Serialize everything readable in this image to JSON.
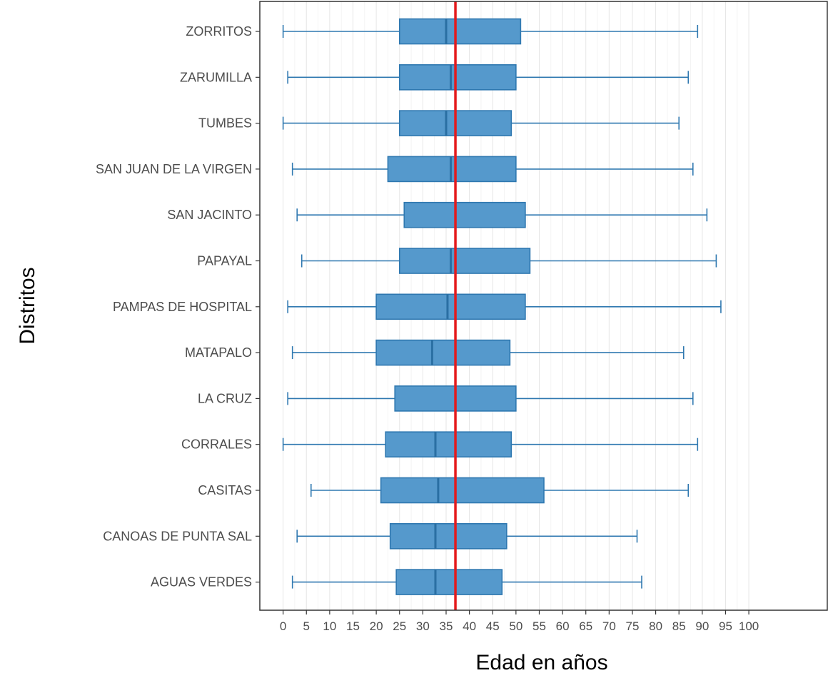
{
  "chart_data": {
    "type": "boxplot",
    "orientation": "horizontal",
    "xlabel": "Edad en años",
    "ylabel": "Distritos",
    "xlim": [
      -5,
      117
    ],
    "x_ticks": [
      0,
      5,
      10,
      15,
      20,
      25,
      30,
      35,
      40,
      45,
      50,
      55,
      60,
      65,
      70,
      75,
      80,
      85,
      90,
      95,
      100
    ],
    "grid": "vertical-major-and-minor",
    "reference_line": {
      "value": 37,
      "color": "#e41a1c"
    },
    "colors": {
      "box_fill": "#5599cc",
      "box_stroke": "#2f78b0",
      "median": "#2a6fa3",
      "frame": "#333333",
      "grid": "#e6e6e6"
    },
    "categories": [
      "ZORRITOS",
      "ZARUMILLA",
      "TUMBES",
      "SAN JUAN DE LA VIRGEN",
      "SAN JACINTO",
      "PAPAYAL",
      "PAMPAS DE HOSPITAL",
      "MATAPALO",
      "LA CRUZ",
      "CORRALES",
      "CASITAS",
      "CANOAS DE PUNTA SAL",
      "AGUAS VERDES"
    ],
    "boxes": [
      {
        "category": "ZORRITOS",
        "min": 0,
        "q1": 25,
        "median": 35,
        "q3": 51,
        "max": 89
      },
      {
        "category": "ZARUMILLA",
        "min": 1,
        "q1": 25,
        "median": 36,
        "q3": 50,
        "max": 87
      },
      {
        "category": "TUMBES",
        "min": 0,
        "q1": 25,
        "median": 35,
        "q3": 49,
        "max": 85
      },
      {
        "category": "SAN JUAN DE LA VIRGEN",
        "min": 2,
        "q1": 22.5,
        "median": 36,
        "q3": 50,
        "max": 88
      },
      {
        "category": "SAN JACINTO",
        "min": 3,
        "q1": 26,
        "median": 37,
        "q3": 52,
        "max": 91
      },
      {
        "category": "PAPAYAL",
        "min": 4,
        "q1": 25,
        "median": 36,
        "q3": 53,
        "max": 93
      },
      {
        "category": "PAMPAS DE HOSPITAL",
        "min": 1,
        "q1": 20,
        "median": 35.3,
        "q3": 52,
        "max": 94
      },
      {
        "category": "MATAPALO",
        "min": 2,
        "q1": 20,
        "median": 32,
        "q3": 48.7,
        "max": 86
      },
      {
        "category": "LA CRUZ",
        "min": 1,
        "q1": 24,
        "median": 37,
        "q3": 50,
        "max": 88
      },
      {
        "category": "CORRALES",
        "min": 0,
        "q1": 22,
        "median": 32.7,
        "q3": 49,
        "max": 89
      },
      {
        "category": "CASITAS",
        "min": 6,
        "q1": 21,
        "median": 33.3,
        "q3": 56,
        "max": 87
      },
      {
        "category": "CANOAS DE PUNTA SAL",
        "min": 3,
        "q1": 23,
        "median": 32.7,
        "q3": 48,
        "max": 76
      },
      {
        "category": "AGUAS VERDES",
        "min": 2,
        "q1": 24.3,
        "median": 32.7,
        "q3": 47,
        "max": 77
      }
    ]
  }
}
